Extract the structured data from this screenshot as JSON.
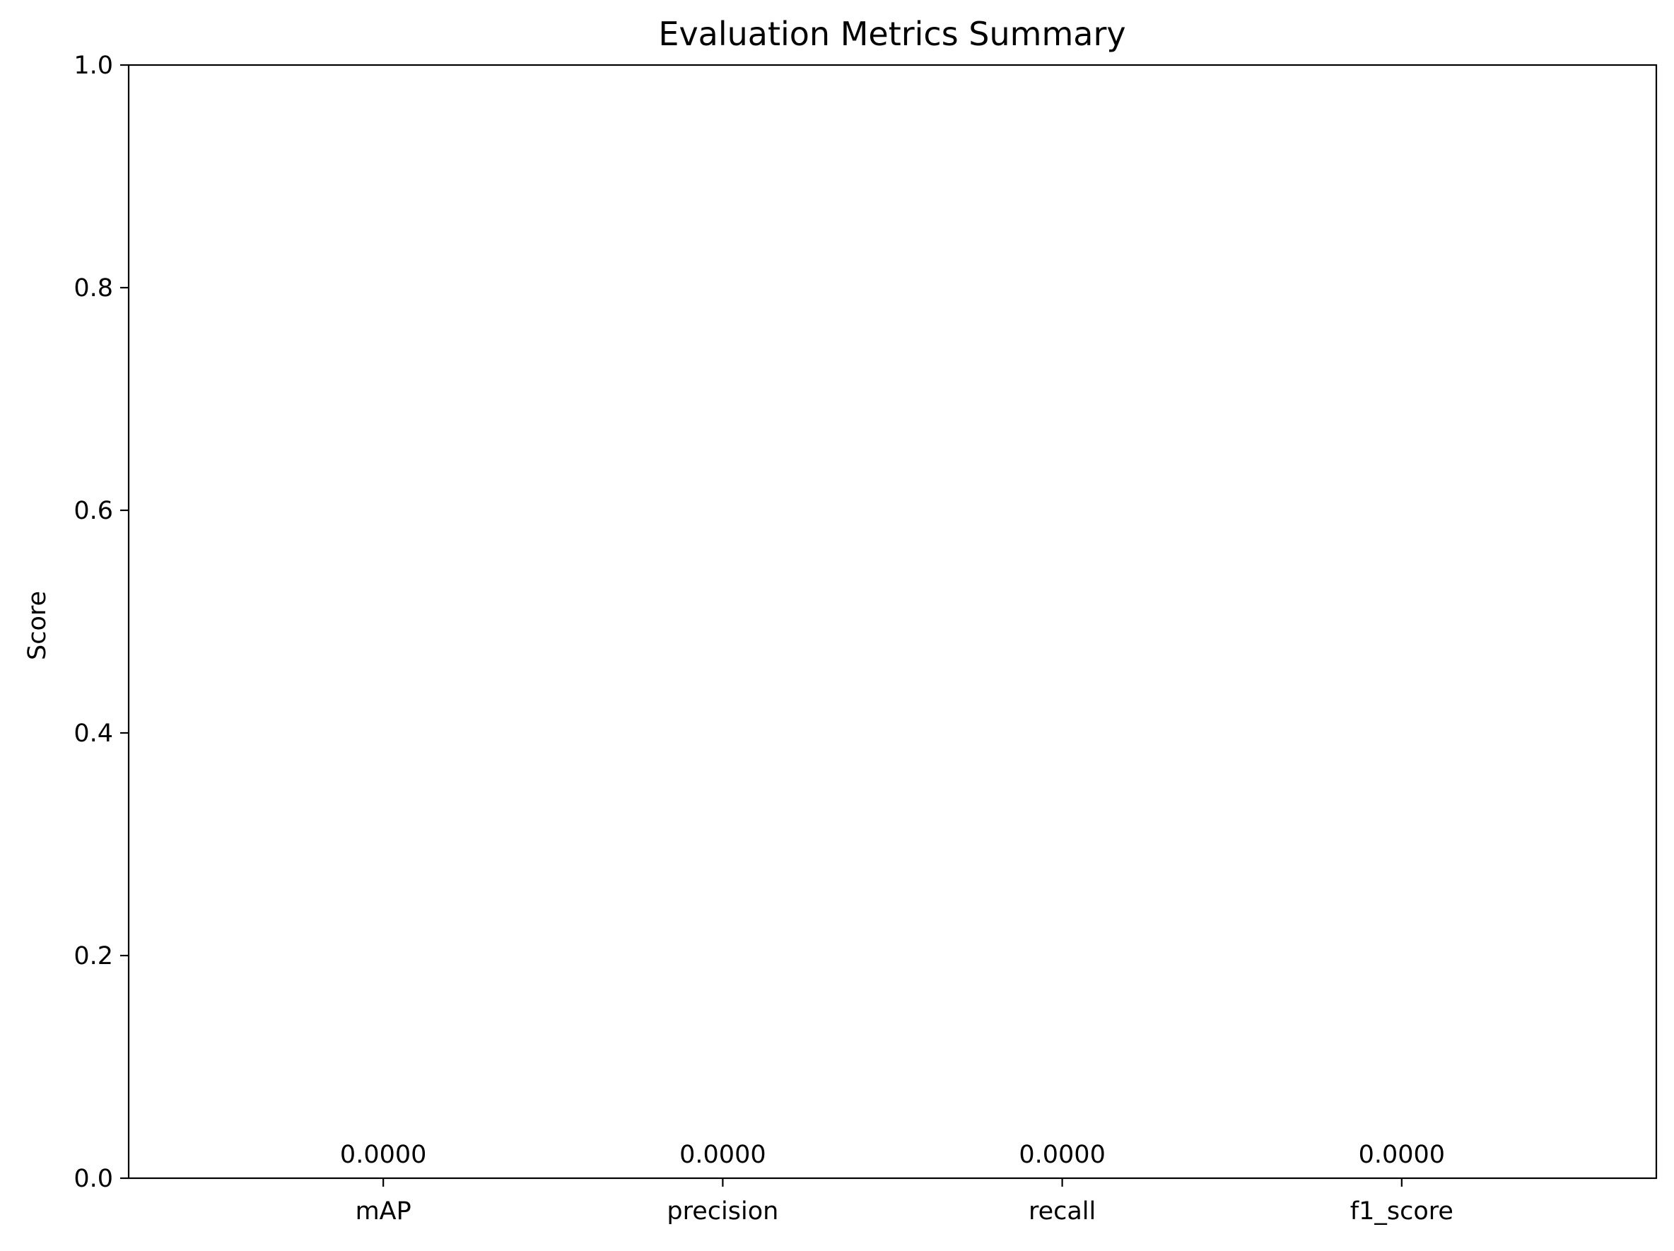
{
  "chart_data": {
    "type": "bar",
    "title": "Evaluation Metrics Summary",
    "xlabel": "",
    "ylabel": "Score",
    "categories": [
      "mAP",
      "precision",
      "recall",
      "f1_score"
    ],
    "values": [
      0.0,
      0.0,
      0.0,
      0.0
    ],
    "data_labels": [
      "0.0000",
      "0.0000",
      "0.0000",
      "0.0000"
    ],
    "yticks": [
      0.0,
      0.2,
      0.4,
      0.6,
      0.8,
      1.0
    ],
    "ytick_labels": [
      "0.0",
      "0.2",
      "0.4",
      "0.6",
      "0.8",
      "1.0"
    ],
    "ylim": [
      0,
      1
    ],
    "grid": false,
    "legend": "none",
    "colors": {
      "axis": "#000000",
      "bar": "#1f77b4",
      "background": "#ffffff"
    }
  }
}
